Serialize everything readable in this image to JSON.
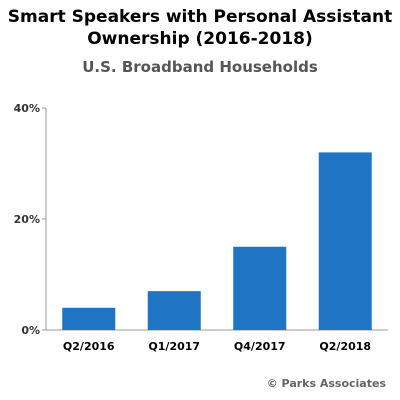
{
  "chart_data": {
    "type": "bar",
    "title_line1": "Smart Speakers with Personal Assistant",
    "title_line2": "Ownership (2016-2018)",
    "subtitle": "U.S. Broadband Households",
    "categories": [
      "Q2/2016",
      "Q1/2017",
      "Q4/2017",
      "Q2/2018"
    ],
    "values": [
      4,
      7,
      15,
      32
    ],
    "ylim": [
      0,
      40
    ],
    "yticks": [
      0,
      20,
      40
    ],
    "ytick_labels": [
      "0%",
      "20%",
      "40%"
    ],
    "xlabel": "",
    "ylabel": "",
    "grid": false,
    "bar_color": "#1F75C4",
    "axis_color": "#999999"
  },
  "credit": "© Parks Associates"
}
